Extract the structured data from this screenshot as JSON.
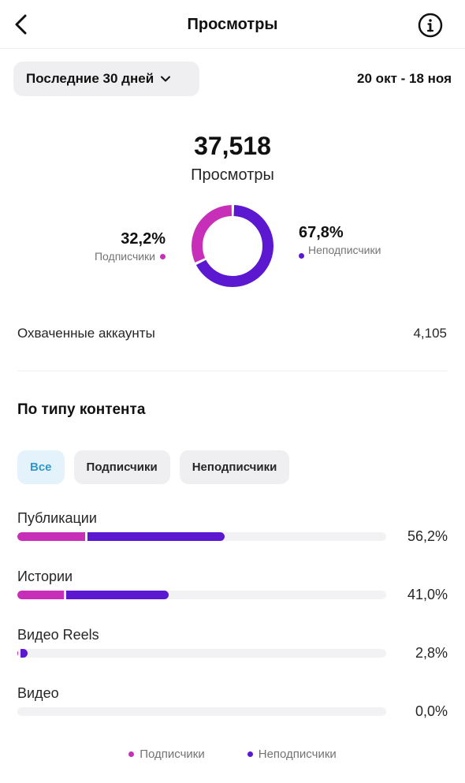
{
  "header": {
    "title": "Просмотры",
    "back_icon": "chevron-left-icon",
    "info_icon": "info-icon"
  },
  "period": {
    "label": "Последние 30 дней",
    "date_range": "20 окт - 18 ноя"
  },
  "summary": {
    "total": "37,518",
    "total_label": "Просмотры"
  },
  "split": {
    "subscribers": {
      "pct": "32,2%",
      "label": "Подписчики",
      "fraction": 0.322,
      "color": "#c72fb9"
    },
    "non_subscribers": {
      "pct": "67,8%",
      "label": "Неподписчики",
      "fraction": 0.678,
      "color": "#5c18d0"
    }
  },
  "reach": {
    "label": "Охваченные аккаунты",
    "value": "4,105"
  },
  "content_type": {
    "title": "По типу контента",
    "filters": [
      "Все",
      "Подписчики",
      "Неподписчики"
    ],
    "active_filter": "Все",
    "rows": [
      {
        "label": "Публикации",
        "pct": "56,2%",
        "sub_fraction": 0.187,
        "nonsub_fraction": 0.375
      },
      {
        "label": "Истории",
        "pct": "41,0%",
        "sub_fraction": 0.13,
        "nonsub_fraction": 0.28
      },
      {
        "label": "Видео Reels",
        "pct": "2,8%",
        "sub_fraction": 0.006,
        "nonsub_fraction": 0.022
      },
      {
        "label": "Видео",
        "pct": "0,0%",
        "sub_fraction": 0,
        "nonsub_fraction": 0
      }
    ]
  },
  "legend": {
    "subscribers": "Подписчики",
    "non_subscribers": "Неподписчики"
  }
}
